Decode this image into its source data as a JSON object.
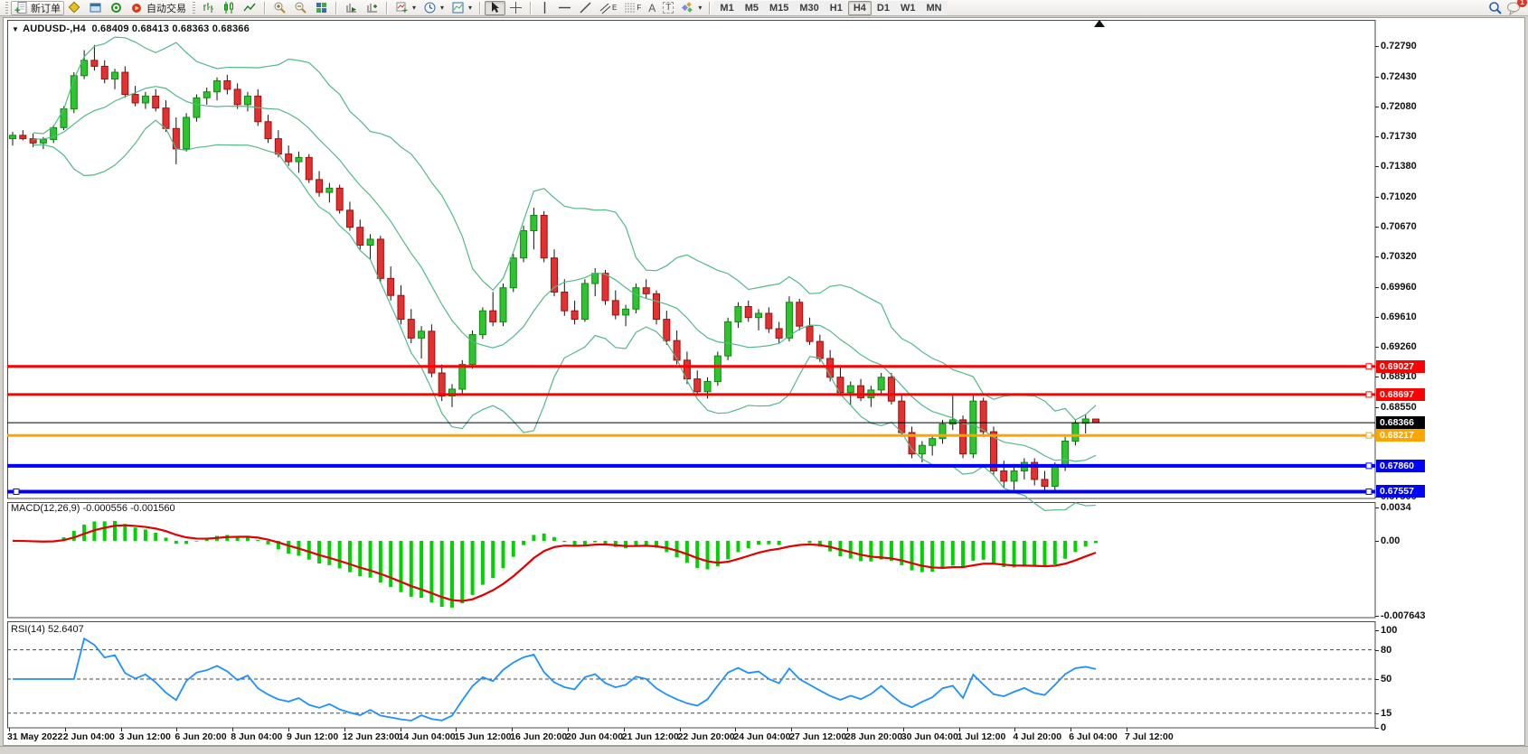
{
  "icons": {
    "dropdown_arrow": "▾",
    "title_marker": "▼"
  },
  "toolbar": {
    "new_order_label": "新订单",
    "autotrading_label": "自动交易",
    "timeframes": [
      "M1",
      "M5",
      "M15",
      "M30",
      "H1",
      "H4",
      "D1",
      "W1",
      "MN"
    ],
    "active_timeframe": "H4",
    "channel_tool_letter": "E",
    "fibo_tool_letter": "F",
    "text_tool_letter": "A",
    "label_tool_letter": "T",
    "notification_count": "1"
  },
  "chart": {
    "title": "AUDUSD-,H4",
    "ohlc": "0.68409 0.68413 0.68363 0.68366"
  },
  "macd_panel": {
    "label": "MACD(12,26,9) -0.000556 -0.001560"
  },
  "rsi_panel": {
    "label": "RSI(14) 52.6407"
  },
  "chart_data": {
    "type": "candlestick",
    "symbol": "AUDUSD-",
    "timeframe": "H4",
    "last_ohlc": {
      "open": "0.68409",
      "high": "0.68413",
      "low": "0.68363",
      "close": "0.68366"
    },
    "price_range": [
      0.67477,
      0.73095
    ],
    "price_ticks": [
      "0.72790",
      "0.72430",
      "0.72080",
      "0.71730",
      "0.71380",
      "0.71020",
      "0.70670",
      "0.70320",
      "0.69960",
      "0.69610",
      "0.69260",
      "0.68910",
      "0.68550",
      "0.67500"
    ],
    "hlines": [
      {
        "price": "0.69027",
        "value": 0.69027,
        "color": "#ff0000",
        "width": 3,
        "anchor_right": true
      },
      {
        "price": "0.68697",
        "value": 0.68697,
        "color": "#ff0000",
        "width": 3,
        "anchor_right": true
      },
      {
        "price": "0.68366",
        "value": 0.68366,
        "color": "#000000",
        "width": 1
      },
      {
        "price": "0.68217",
        "value": 0.68217,
        "color": "#ffa500",
        "width": 3,
        "anchor_right": true
      },
      {
        "price": "0.67860",
        "value": 0.6786,
        "color": "#0000ff",
        "width": 4,
        "anchor_right": true
      },
      {
        "price": "0.67557",
        "value": 0.67557,
        "color": "#0000ff",
        "width": 4,
        "anchor_right": true,
        "anchor_left": true
      }
    ],
    "bollinger": {
      "color": "#53b987"
    },
    "candle_colors": {
      "up_fill": "#2fc42f",
      "up_stroke": "#0c8a0c",
      "down_fill": "#e23131",
      "down_stroke": "#9e0f0f",
      "wick": "#111111"
    },
    "macd": {
      "label": "MACD(12,26,9)",
      "current_values": "-0.000556 -0.001560",
      "range": [
        -0.007643,
        0.0034
      ],
      "ticks": [
        "0.0034",
        "0.00",
        "-0.007643"
      ],
      "hist_color": "#00d200",
      "signal_color": "#e00000"
    },
    "rsi": {
      "label": "RSI(14)",
      "current_value": "52.6407",
      "range": [
        0,
        100
      ],
      "ticks": [
        "100",
        "80",
        "50",
        "15",
        "0"
      ],
      "levels": [
        80,
        50,
        15
      ],
      "color": "#1e90ff"
    },
    "x_labels": [
      "31 May 2022",
      "2 Jun 04:00",
      "3 Jun 12:00",
      "6 Jun 20:00",
      "8 Jun 04:00",
      "9 Jun 12:00",
      "12 Jun 23:00",
      "14 Jun 04:00",
      "15 Jun 12:00",
      "16 Jun 20:00",
      "20 Jun 04:00",
      "21 Jun 12:00",
      "22 Jun 20:00",
      "24 Jun 04:00",
      "27 Jun 12:00",
      "28 Jun 20:00",
      "30 Jun 04:00",
      "1 Jul 12:00",
      "4 Jul 20:00",
      "6 Jul 04:00",
      "7 Jul 12:00"
    ],
    "candles": [
      [
        0.717,
        0.7178,
        0.7162,
        0.7174
      ],
      [
        0.7174,
        0.718,
        0.7168,
        0.717
      ],
      [
        0.717,
        0.7176,
        0.716,
        0.7165
      ],
      [
        0.7165,
        0.7172,
        0.7158,
        0.7169
      ],
      [
        0.7169,
        0.7186,
        0.7165,
        0.7183
      ],
      [
        0.7183,
        0.7208,
        0.718,
        0.7205
      ],
      [
        0.7205,
        0.7248,
        0.72,
        0.7244
      ],
      [
        0.7244,
        0.7274,
        0.724,
        0.7262
      ],
      [
        0.7262,
        0.728,
        0.725,
        0.7255
      ],
      [
        0.7255,
        0.7262,
        0.7235,
        0.724
      ],
      [
        0.724,
        0.7252,
        0.7228,
        0.7248
      ],
      [
        0.7248,
        0.7255,
        0.7218,
        0.7222
      ],
      [
        0.7222,
        0.7232,
        0.7208,
        0.7212
      ],
      [
        0.7212,
        0.7225,
        0.7205,
        0.722
      ],
      [
        0.722,
        0.7228,
        0.7202,
        0.7206
      ],
      [
        0.7206,
        0.7215,
        0.7178,
        0.7182
      ],
      [
        0.7182,
        0.7195,
        0.714,
        0.7158
      ],
      [
        0.7158,
        0.72,
        0.7155,
        0.7195
      ],
      [
        0.7195,
        0.7222,
        0.719,
        0.7218
      ],
      [
        0.7218,
        0.723,
        0.721,
        0.7225
      ],
      [
        0.7225,
        0.7242,
        0.7215,
        0.7238
      ],
      [
        0.7238,
        0.7245,
        0.7222,
        0.7228
      ],
      [
        0.7228,
        0.7235,
        0.7205,
        0.721
      ],
      [
        0.721,
        0.7225,
        0.7202,
        0.722
      ],
      [
        0.722,
        0.7228,
        0.7185,
        0.719
      ],
      [
        0.719,
        0.7198,
        0.7165,
        0.717
      ],
      [
        0.717,
        0.718,
        0.7148,
        0.7152
      ],
      [
        0.7152,
        0.7162,
        0.7138,
        0.7143
      ],
      [
        0.7143,
        0.7155,
        0.713,
        0.7148
      ],
      [
        0.7148,
        0.7152,
        0.7118,
        0.7122
      ],
      [
        0.7122,
        0.7132,
        0.7102,
        0.7107
      ],
      [
        0.7107,
        0.7118,
        0.7095,
        0.7112
      ],
      [
        0.7112,
        0.7116,
        0.7082,
        0.7086
      ],
      [
        0.7086,
        0.7096,
        0.7062,
        0.7066
      ],
      [
        0.7066,
        0.7075,
        0.704,
        0.7045
      ],
      [
        0.7045,
        0.7058,
        0.7028,
        0.7052
      ],
      [
        0.7052,
        0.7056,
        0.7002,
        0.7006
      ],
      [
        0.7006,
        0.702,
        0.698,
        0.6986
      ],
      [
        0.6986,
        0.6998,
        0.6952,
        0.6958
      ],
      [
        0.6958,
        0.697,
        0.693,
        0.6936
      ],
      [
        0.6936,
        0.695,
        0.6912,
        0.6944
      ],
      [
        0.6944,
        0.6952,
        0.689,
        0.6895
      ],
      [
        0.6895,
        0.6905,
        0.6862,
        0.6868
      ],
      [
        0.6868,
        0.6882,
        0.6855,
        0.6876
      ],
      [
        0.6876,
        0.691,
        0.687,
        0.6905
      ],
      [
        0.6905,
        0.6945,
        0.69,
        0.694
      ],
      [
        0.694,
        0.6972,
        0.6935,
        0.6968
      ],
      [
        0.6968,
        0.699,
        0.695,
        0.6955
      ],
      [
        0.6955,
        0.7,
        0.695,
        0.6995
      ],
      [
        0.6995,
        0.7035,
        0.699,
        0.703
      ],
      [
        0.703,
        0.7068,
        0.7025,
        0.7062
      ],
      [
        0.7062,
        0.7089,
        0.704,
        0.708
      ],
      [
        0.708,
        0.7085,
        0.7025,
        0.703
      ],
      [
        0.703,
        0.704,
        0.6985,
        0.699
      ],
      [
        0.699,
        0.7005,
        0.6962,
        0.6968
      ],
      [
        0.6968,
        0.698,
        0.6952,
        0.6958
      ],
      [
        0.6958,
        0.7005,
        0.6955,
        0.7
      ],
      [
        0.7,
        0.7018,
        0.6985,
        0.7012
      ],
      [
        0.7012,
        0.7016,
        0.6975,
        0.698
      ],
      [
        0.698,
        0.6992,
        0.6958,
        0.6963
      ],
      [
        0.6963,
        0.6975,
        0.695,
        0.697
      ],
      [
        0.697,
        0.7,
        0.6965,
        0.6995
      ],
      [
        0.6995,
        0.7005,
        0.6982,
        0.6988
      ],
      [
        0.6988,
        0.6992,
        0.6952,
        0.6958
      ],
      [
        0.6958,
        0.6968,
        0.6928,
        0.6933
      ],
      [
        0.6933,
        0.6945,
        0.6905,
        0.691
      ],
      [
        0.691,
        0.692,
        0.6882,
        0.6888
      ],
      [
        0.6888,
        0.6898,
        0.6868,
        0.6873
      ],
      [
        0.6873,
        0.689,
        0.6865,
        0.6885
      ],
      [
        0.6885,
        0.692,
        0.688,
        0.6915
      ],
      [
        0.6915,
        0.696,
        0.691,
        0.6955
      ],
      [
        0.6955,
        0.6978,
        0.6948,
        0.6973
      ],
      [
        0.6973,
        0.698,
        0.6955,
        0.696
      ],
      [
        0.696,
        0.697,
        0.6945,
        0.6965
      ],
      [
        0.6965,
        0.6972,
        0.6942,
        0.6947
      ],
      [
        0.6947,
        0.6955,
        0.693,
        0.6936
      ],
      [
        0.6936,
        0.6985,
        0.6932,
        0.6978
      ],
      [
        0.6978,
        0.6982,
        0.6945,
        0.695
      ],
      [
        0.695,
        0.696,
        0.6928,
        0.6932
      ],
      [
        0.6932,
        0.694,
        0.6908,
        0.6912
      ],
      [
        0.6912,
        0.6922,
        0.6885,
        0.689
      ],
      [
        0.689,
        0.6902,
        0.6868,
        0.6872
      ],
      [
        0.6872,
        0.6885,
        0.6858,
        0.688
      ],
      [
        0.688,
        0.6888,
        0.6862,
        0.6866
      ],
      [
        0.6866,
        0.688,
        0.6855,
        0.6875
      ],
      [
        0.6875,
        0.6895,
        0.687,
        0.689
      ],
      [
        0.689,
        0.6895,
        0.6858,
        0.6862
      ],
      [
        0.6862,
        0.687,
        0.682,
        0.6825
      ],
      [
        0.6825,
        0.6832,
        0.6795,
        0.68
      ],
      [
        0.68,
        0.6815,
        0.679,
        0.681
      ],
      [
        0.681,
        0.6822,
        0.6798,
        0.6818
      ],
      [
        0.6818,
        0.684,
        0.6812,
        0.6835
      ],
      [
        0.6835,
        0.687,
        0.6828,
        0.684
      ],
      [
        0.684,
        0.6845,
        0.6795,
        0.68
      ],
      [
        0.68,
        0.6868,
        0.6795,
        0.6862
      ],
      [
        0.6862,
        0.6866,
        0.682,
        0.6826
      ],
      [
        0.6826,
        0.6832,
        0.6775,
        0.678
      ],
      [
        0.678,
        0.6792,
        0.676,
        0.6768
      ],
      [
        0.6768,
        0.6785,
        0.6758,
        0.678
      ],
      [
        0.678,
        0.6795,
        0.677,
        0.679
      ],
      [
        0.679,
        0.6795,
        0.6763,
        0.677
      ],
      [
        0.677,
        0.678,
        0.6756,
        0.6762
      ],
      [
        0.6762,
        0.679,
        0.6757,
        0.6785
      ],
      [
        0.6785,
        0.682,
        0.678,
        0.6815
      ],
      [
        0.6815,
        0.684,
        0.681,
        0.6836
      ],
      [
        0.6836,
        0.6846,
        0.6824,
        0.6841
      ],
      [
        0.68409,
        0.68413,
        0.68363,
        0.68366
      ]
    ]
  }
}
